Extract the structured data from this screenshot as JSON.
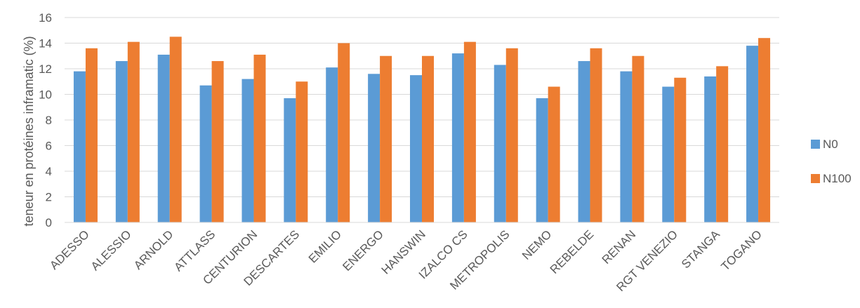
{
  "chart_data": {
    "type": "bar",
    "title": "",
    "xlabel": "",
    "ylabel": "teneur en protéines inframatic (%)",
    "ylim": [
      0,
      16
    ],
    "yticks": [
      0,
      2,
      4,
      6,
      8,
      10,
      12,
      14,
      16
    ],
    "grid": true,
    "legend_position": "right",
    "categories": [
      "ADESSO",
      "ALESSIO",
      "ARNOLD",
      "ATTLASS",
      "CENTURION",
      "DESCARTES",
      "EMILIO",
      "ENERGO",
      "HANSWIN",
      "IZALCO CS",
      "METROPOLIS",
      "NEMO",
      "REBELDE",
      "RENAN",
      "RGT VENEZIO",
      "STANGA",
      "TOGANO"
    ],
    "series": [
      {
        "name": "N0",
        "color": "#5B9BD5",
        "values": [
          11.8,
          12.6,
          13.1,
          10.7,
          11.2,
          9.7,
          12.1,
          11.6,
          11.5,
          13.2,
          12.3,
          9.7,
          12.6,
          11.8,
          10.6,
          11.4,
          13.8
        ]
      },
      {
        "name": "N100",
        "color": "#ED7D31",
        "values": [
          13.6,
          14.1,
          14.5,
          12.6,
          13.1,
          11.0,
          14.0,
          13.0,
          13.0,
          14.1,
          13.6,
          10.6,
          13.6,
          13.0,
          11.3,
          12.2,
          14.4
        ]
      }
    ]
  }
}
